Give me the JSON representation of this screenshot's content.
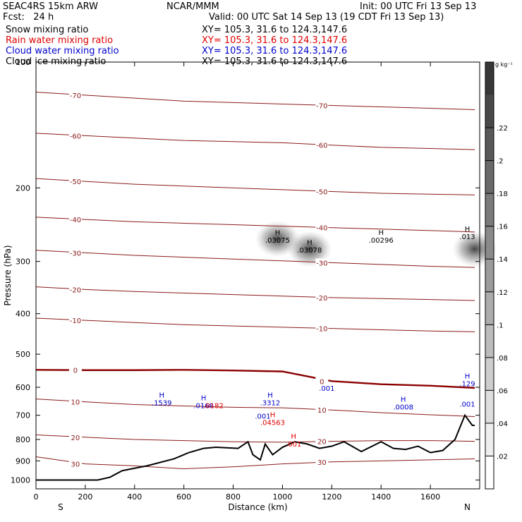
{
  "header": {
    "model": "SEAC4RS 15km ARW",
    "org": "NCAR/MMM",
    "init": "Init: 00 UTC Fri 13 Sep 13",
    "fcst": "Fcst:   24 h",
    "valid": "Valid: 00 UTC Sat 14 Sep 13 (19 CDT Fri 13 Sep 13)"
  },
  "legend": [
    {
      "label": "Snow mixing ratio",
      "xy": "XY= 105.3, 31.6 to 124.3,147.6",
      "color": "#000000"
    },
    {
      "label": "Rain water mixing ratio",
      "xy": "XY= 105.3, 31.6 to 124.3,147.6",
      "color": "#e00000"
    },
    {
      "label": "Cloud water mixing ratio",
      "xy": "XY= 105.3, 31.6 to 124.3,147.6",
      "color": "#0000cc"
    },
    {
      "label": "Cloud ice mixing ratio",
      "xy": "XY= 105.3, 31.6 to 124.3,147.6",
      "color": "#000000"
    }
  ],
  "chart_data": {
    "type": "cross-section",
    "xlabel": "Distance (km)",
    "ylabel": "Pressure (hPa)",
    "xlim": [
      0,
      1800
    ],
    "ylim": [
      1050,
      100
    ],
    "y_scale": "log",
    "x_ticks": [
      0,
      200,
      400,
      600,
      800,
      1000,
      1200,
      1400,
      1600
    ],
    "y_ticks": [
      200,
      300,
      400,
      500,
      600,
      700,
      800,
      900,
      1000
    ],
    "y_top_label": "100",
    "x_end_labels": {
      "left": "S",
      "right": "N"
    },
    "colorbar": {
      "unit": "g kg⁻¹",
      "ticks": [
        ".02",
        ".04",
        ".06",
        ".08",
        ".1",
        ".12",
        ".14",
        ".16",
        ".18",
        ".2",
        ".22"
      ]
    },
    "temperature_isotherms": {
      "color": "#8b1a1a",
      "freezing_color": "#8b0000",
      "levels": [
        {
          "t": -70,
          "p": [
            118,
            120,
            122,
            124,
            125,
            126,
            127,
            128,
            129,
            130
          ]
        },
        {
          "t": -60,
          "p": [
            148,
            150,
            152,
            154,
            155,
            156,
            158,
            160,
            161,
            162
          ]
        },
        {
          "t": -50,
          "p": [
            190,
            193,
            196,
            198,
            200,
            202,
            204,
            206,
            207,
            208
          ]
        },
        {
          "t": -40,
          "p": [
            235,
            238,
            241,
            243,
            245,
            247,
            249,
            251,
            253,
            255
          ]
        },
        {
          "t": -30,
          "p": [
            282,
            286,
            290,
            293,
            296,
            299,
            302,
            305,
            308,
            310
          ]
        },
        {
          "t": -20,
          "p": [
            345,
            350,
            354,
            357,
            360,
            363,
            366,
            368,
            370,
            372
          ]
        },
        {
          "t": -10,
          "p": [
            410,
            415,
            420,
            425,
            428,
            431,
            434,
            437,
            440,
            442
          ]
        },
        {
          "t": 0,
          "p": [
            545,
            546,
            546,
            545,
            547,
            550,
            580,
            590,
            595,
            602
          ]
        },
        {
          "t": 10,
          "p": [
            640,
            650,
            660,
            665,
            670,
            672,
            680,
            690,
            698,
            705
          ]
        },
        {
          "t": 20,
          "p": [
            780,
            790,
            800,
            805,
            810,
            812,
            808,
            805,
            805,
            808
          ]
        },
        {
          "t": 30,
          "p": [
            880,
            915,
            925,
            940,
            930,
            915,
            905,
            900,
            895,
            890
          ]
        }
      ],
      "x": [
        0,
        200,
        400,
        600,
        800,
        1000,
        1200,
        1400,
        1600,
        1780
      ]
    },
    "annotations": [
      {
        "text": "H",
        "value": ".03075",
        "x": 980,
        "p": 265,
        "color": "#000000"
      },
      {
        "text": "H",
        "value": ".03078",
        "x": 1110,
        "p": 280,
        "color": "#000000"
      },
      {
        "text": "H",
        "value": ".00296",
        "x": 1400,
        "p": 265,
        "color": "#000000"
      },
      {
        "text": "H",
        "value": ".013",
        "x": 1750,
        "p": 260,
        "color": "#000000"
      },
      {
        "text": "H",
        "value": ".1539",
        "x": 510,
        "p": 650,
        "color": "#0000cc"
      },
      {
        "text": "H",
        "value": ".0168",
        "x": 680,
        "p": 660,
        "color": "#0000cc"
      },
      {
        "text": "",
        "value": ".0182",
        "x": 720,
        "p": 660,
        "color": "#e00000"
      },
      {
        "text": "H",
        "value": ".3312",
        "x": 950,
        "p": 650,
        "color": "#0000cc"
      },
      {
        "text": "",
        "value": ".001",
        "x": 920,
        "p": 700,
        "color": "#0000cc"
      },
      {
        "text": "H",
        "value": ".04563",
        "x": 960,
        "p": 725,
        "color": "#e00000"
      },
      {
        "text": "",
        "value": ".001",
        "x": 1180,
        "p": 600,
        "color": "#0000cc"
      },
      {
        "text": "H",
        "value": ".0008",
        "x": 1490,
        "p": 665,
        "color": "#0000cc"
      },
      {
        "text": "H",
        "value": ".129",
        "x": 1750,
        "p": 585,
        "color": "#0000cc"
      },
      {
        "text": "",
        "value": ".001",
        "x": 1750,
        "p": 655,
        "color": "#0000cc"
      },
      {
        "text": "H",
        "value": ".001",
        "x": 1045,
        "p": 815,
        "color": "#e00000"
      }
    ],
    "terrain": {
      "x": [
        0,
        250,
        300,
        350,
        450,
        560,
        620,
        680,
        730,
        820,
        860,
        880,
        910,
        930,
        960,
        1000,
        1050,
        1100,
        1150,
        1200,
        1250,
        1320,
        1400,
        1450,
        1500,
        1550,
        1600,
        1650,
        1700,
        1740,
        1770,
        1780
      ],
      "p": [
        1000,
        1000,
        985,
        950,
        925,
        890,
        860,
        840,
        835,
        840,
        810,
        870,
        895,
        820,
        870,
        835,
        810,
        820,
        840,
        830,
        810,
        855,
        810,
        840,
        845,
        830,
        860,
        850,
        800,
        700,
        740,
        740
      ]
    },
    "snow_maxima_shading": [
      {
        "x": 980,
        "p": 265,
        "intensity": 0.18
      },
      {
        "x": 1110,
        "p": 280,
        "intensity": 0.16
      },
      {
        "x": 1780,
        "p": 280,
        "intensity": 0.12
      }
    ]
  }
}
